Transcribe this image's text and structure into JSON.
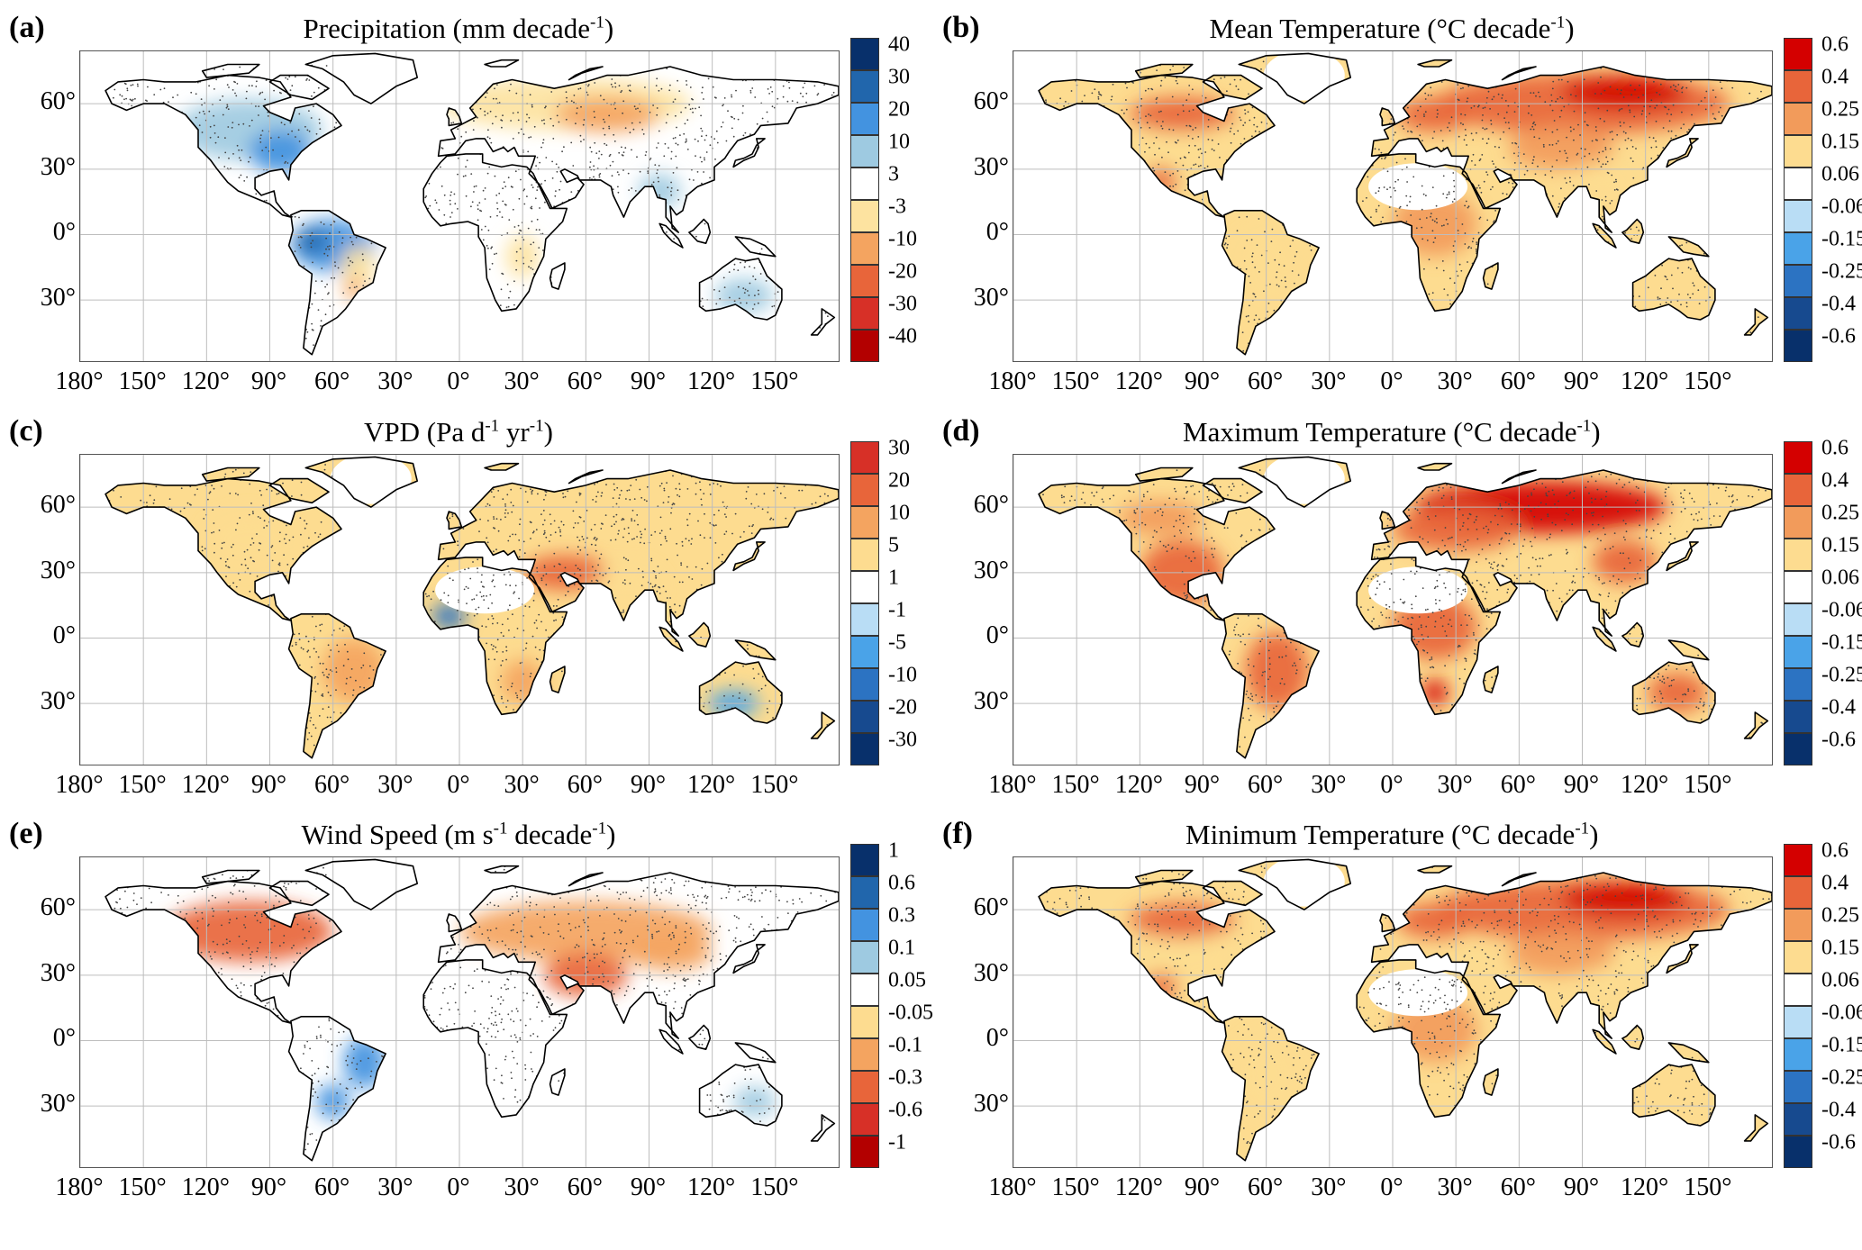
{
  "panels": [
    {
      "id": "a",
      "label": "(a)",
      "title": {
        "main": "Precipitation (mm decade",
        "sup": "-1",
        "end": ")"
      },
      "colorbar": {
        "ticks": [
          "40",
          "30",
          "20",
          "10",
          "3",
          "-3",
          "-10",
          "-20",
          "-30",
          "-40"
        ],
        "colors": [
          "#08306b",
          "#2166ac",
          "#4393e0",
          "#9ecae1",
          "#ffffff",
          "#fde3a0",
          "#f4a460",
          "#e8653a",
          "#d73027",
          "#b30000"
        ]
      },
      "scheme": "precip"
    },
    {
      "id": "b",
      "label": "(b)",
      "title": {
        "main": "Mean Temperature (°C decade",
        "sup": "-1",
        "end": ")"
      },
      "colorbar": {
        "ticks": [
          "0.6",
          "0.4",
          "0.25",
          "0.15",
          "0.06",
          "-0.06",
          "-0.15",
          "-0.25",
          "-0.4",
          "-0.6"
        ],
        "colors": [
          "#d40000",
          "#e8653a",
          "#f29b5b",
          "#fddc90",
          "#ffffff",
          "#b9ddf5",
          "#4aa3e8",
          "#2c73c2",
          "#174a8f",
          "#08306b"
        ]
      },
      "scheme": "warm"
    },
    {
      "id": "c",
      "label": "(c)",
      "title": {
        "main": "VPD (Pa d",
        "sup1": "-1",
        "mid": " yr",
        "sup2": "-1",
        "end": ")"
      },
      "colorbar": {
        "ticks": [
          "30",
          "20",
          "10",
          "5",
          "1",
          "-1",
          "-5",
          "-10",
          "-20",
          "-30"
        ],
        "colors": [
          "#d73027",
          "#e8653a",
          "#f4a460",
          "#fddc90",
          "#ffffff",
          "#b9ddf5",
          "#4aa3e8",
          "#2c73c2",
          "#174a8f",
          "#08306b"
        ]
      },
      "scheme": "vpd"
    },
    {
      "id": "d",
      "label": "(d)",
      "title": {
        "main": "Maximum Temperature (°C decade",
        "sup": "-1",
        "end": ")"
      },
      "colorbar": {
        "ticks": [
          "0.6",
          "0.4",
          "0.25",
          "0.15",
          "0.06",
          "-0.06",
          "-0.15",
          "-0.25",
          "-0.4",
          "-0.6"
        ],
        "colors": [
          "#d40000",
          "#e8653a",
          "#f29b5b",
          "#fddc90",
          "#ffffff",
          "#b9ddf5",
          "#4aa3e8",
          "#2c73c2",
          "#174a8f",
          "#08306b"
        ]
      },
      "scheme": "hot"
    },
    {
      "id": "e",
      "label": "(e)",
      "title": {
        "main": "Wind Speed (m s",
        "sup1": "-1",
        "mid": " decade",
        "sup2": "-1",
        "end": ")"
      },
      "colorbar": {
        "ticks": [
          "1",
          "0.6",
          "0.3",
          "0.1",
          "0.05",
          "-0.05",
          "-0.1",
          "-0.3",
          "-0.6",
          "-1"
        ],
        "colors": [
          "#08306b",
          "#2166ac",
          "#4393e0",
          "#9ecae1",
          "#ffffff",
          "#fddc90",
          "#f4a460",
          "#e8653a",
          "#d73027",
          "#b30000"
        ]
      },
      "scheme": "wind"
    },
    {
      "id": "f",
      "label": "(f)",
      "title": {
        "main": "Minimum Temperature (°C decade",
        "sup": "-1",
        "end": ")"
      },
      "colorbar": {
        "ticks": [
          "0.6",
          "0.4",
          "0.25",
          "0.15",
          "0.06",
          "-0.06",
          "-0.15",
          "-0.25",
          "-0.4",
          "-0.6"
        ],
        "colors": [
          "#d40000",
          "#e8653a",
          "#f29b5b",
          "#fddc90",
          "#ffffff",
          "#b9ddf5",
          "#4aa3e8",
          "#2c73c2",
          "#174a8f",
          "#08306b"
        ]
      },
      "scheme": "warm"
    }
  ],
  "axes": {
    "lat_ticks": [
      60,
      30,
      0,
      -30
    ],
    "lat_labels": [
      "60°",
      "30°",
      "0°",
      "30°"
    ],
    "lon_ticks": [
      -180,
      -150,
      -120,
      -90,
      -60,
      -30,
      0,
      30,
      60,
      90,
      120,
      150
    ],
    "lon_labels": [
      "180°",
      "150°",
      "120°",
      "90°",
      "60°",
      "30°",
      "0°",
      "30°",
      "60°",
      "90°",
      "120°",
      "150°"
    ],
    "lon_range": [
      -180,
      180
    ],
    "lat_range": [
      -60,
      90
    ],
    "grid": true
  }
}
